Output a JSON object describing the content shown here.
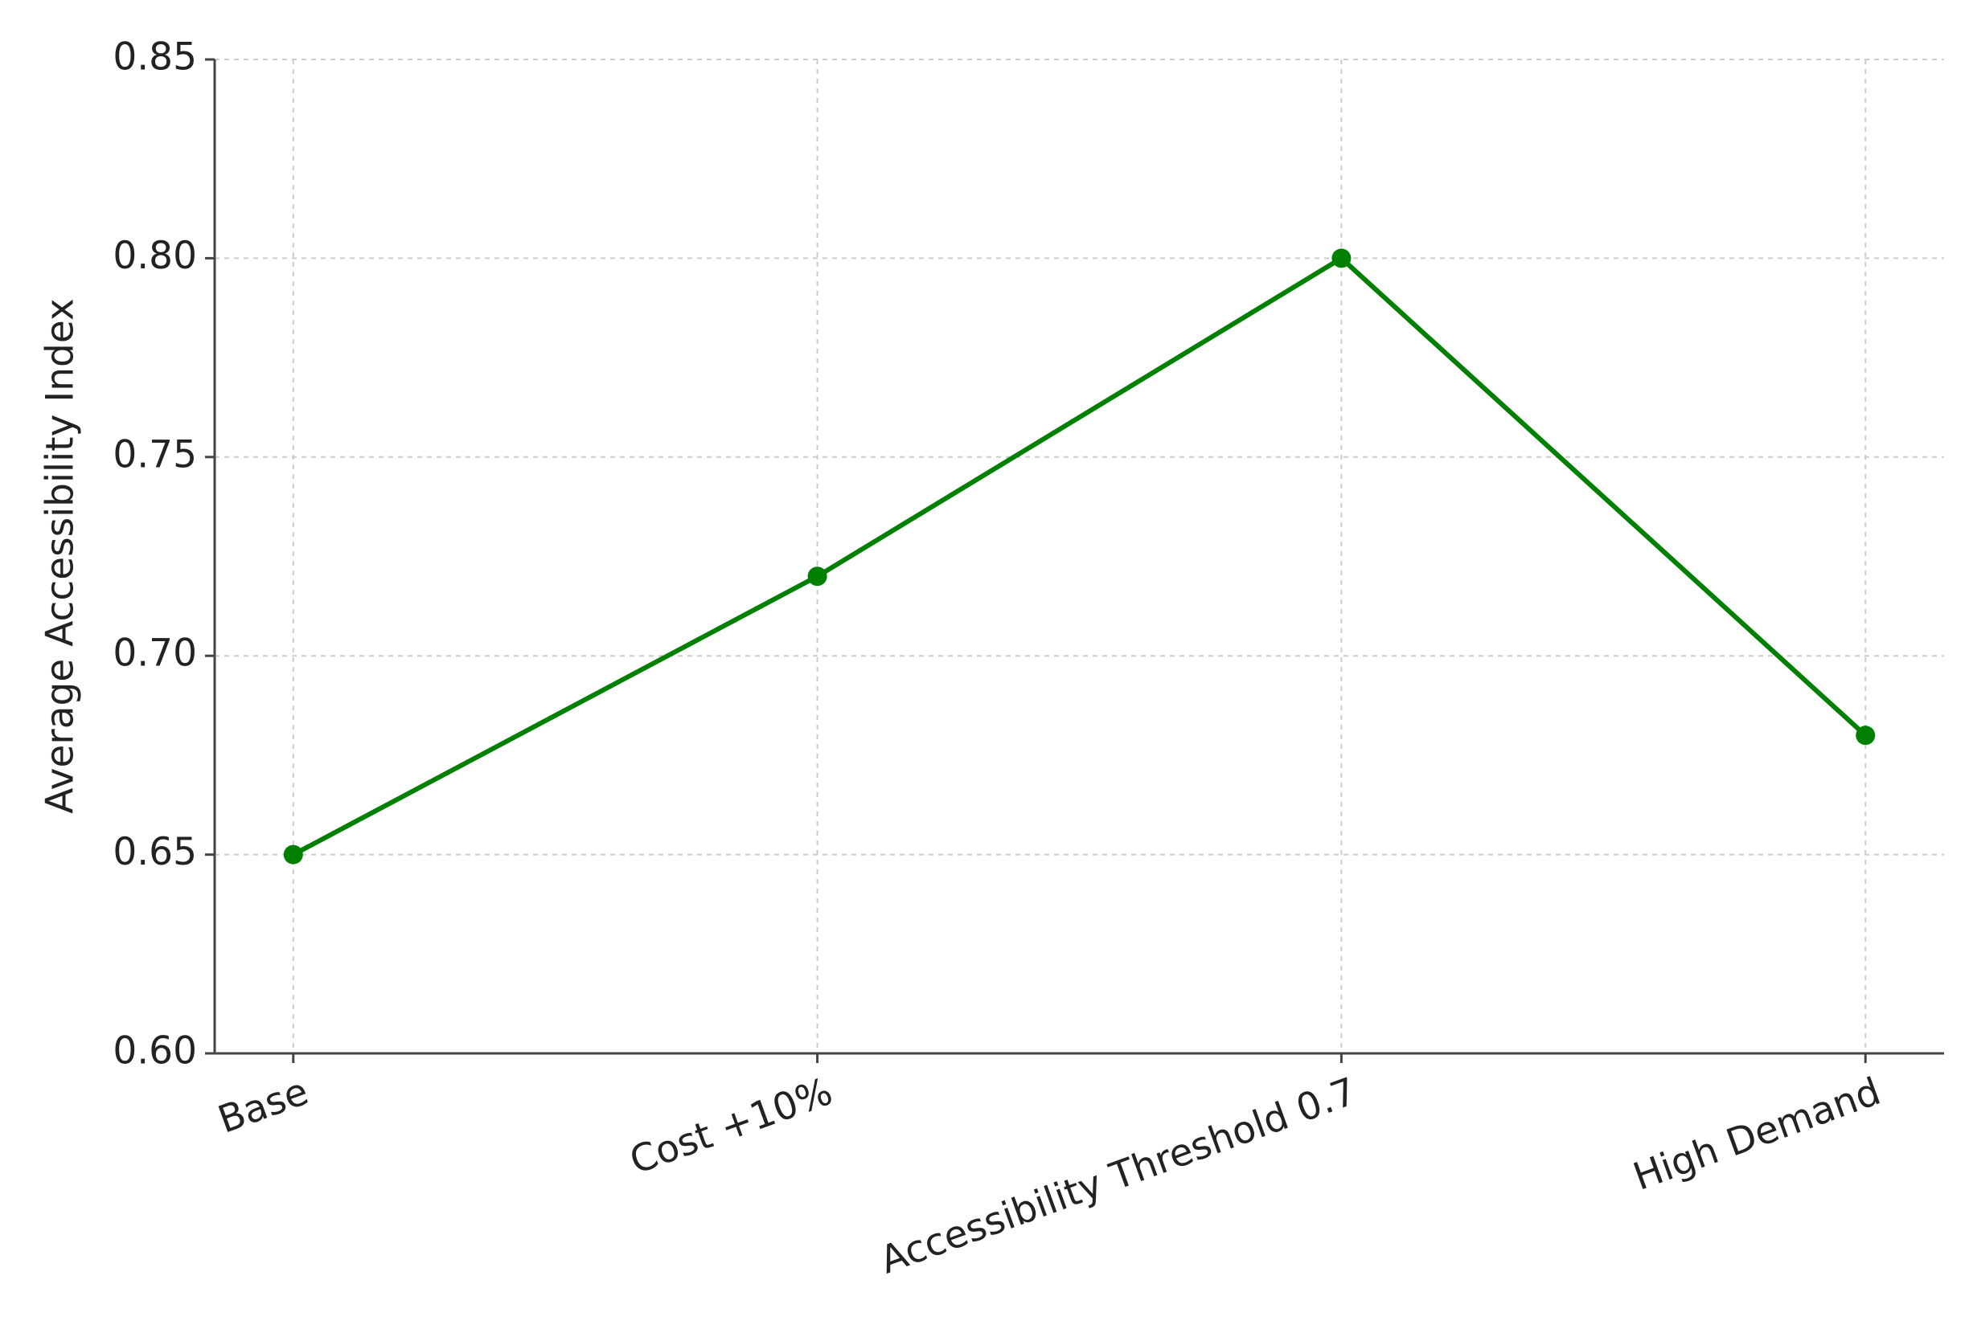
{
  "chart_data": {
    "type": "line",
    "ylabel": "Average Accessibility Index",
    "categories": [
      "Base",
      "Cost +10%",
      "Accessibility Threshold 0.7",
      "High Demand"
    ],
    "series": [
      {
        "name": "Average Accessibility Index",
        "color": "#008000",
        "values": [
          0.65,
          0.72,
          0.8,
          0.68
        ]
      }
    ],
    "ylim": [
      0.6,
      0.85
    ],
    "yticks": [
      {
        "value": 0.6,
        "label": "0.60"
      },
      0.65,
      {
        "value": 0.7,
        "label": "0.70"
      },
      0.75,
      {
        "value": 0.8,
        "label": "0.80"
      },
      0.85
    ],
    "grid": true
  }
}
